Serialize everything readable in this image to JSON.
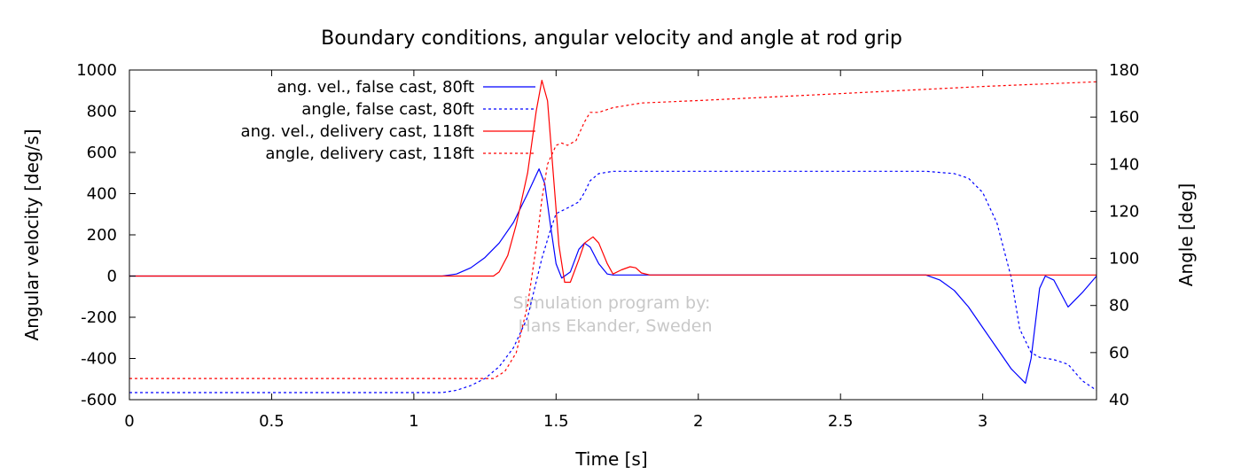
{
  "chart_data": {
    "type": "line",
    "title": "Boundary conditions, angular velocity and angle at rod grip",
    "xlabel": "Time [s]",
    "ylabel": "Angular velocity [deg/s]",
    "y2label": "Angle [deg]",
    "xlim": [
      0,
      3.4
    ],
    "ylim": [
      -600,
      1000
    ],
    "y2lim": [
      40,
      180
    ],
    "xticks": [
      "0",
      "0.5",
      "1",
      "1.5",
      "2",
      "2.5",
      "3"
    ],
    "yticks": [
      "1000",
      "800",
      "600",
      "400",
      "200",
      "0",
      "-200",
      "-400",
      "-600"
    ],
    "y2ticks": [
      "180",
      "160",
      "140",
      "120",
      "100",
      "80",
      "60",
      "40"
    ],
    "grid": false,
    "legend_position": "top-left",
    "watermark": [
      "Simulation program by:",
      "Hans Ekander, Sweden"
    ],
    "colors": {
      "false_cast": "#0000ff",
      "delivery_cast": "#ff0000"
    },
    "series": [
      {
        "name": "ang. vel., false cast, 80ft",
        "axis": "left",
        "color": "#0000ff",
        "dash": false,
        "x": [
          0,
          1.1,
          1.15,
          1.2,
          1.25,
          1.3,
          1.35,
          1.4,
          1.44,
          1.46,
          1.48,
          1.5,
          1.52,
          1.55,
          1.58,
          1.6,
          1.62,
          1.65,
          1.68,
          1.7,
          1.75,
          1.8,
          2.8,
          2.85,
          2.9,
          2.95,
          3.0,
          3.05,
          3.1,
          3.15,
          3.17,
          3.2,
          3.22,
          3.25,
          3.3,
          3.35,
          3.4
        ],
        "y": [
          0,
          0,
          10,
          40,
          90,
          160,
          260,
          400,
          520,
          450,
          250,
          60,
          -10,
          20,
          130,
          160,
          140,
          60,
          10,
          5,
          5,
          5,
          5,
          -20,
          -70,
          -150,
          -250,
          -350,
          -450,
          -520,
          -400,
          -60,
          0,
          -20,
          -150,
          -80,
          0
        ]
      },
      {
        "name": "angle, false cast, 80ft",
        "axis": "right",
        "color": "#0000ff",
        "dash": true,
        "x": [
          0,
          1.1,
          1.15,
          1.2,
          1.25,
          1.3,
          1.35,
          1.4,
          1.45,
          1.48,
          1.5,
          1.55,
          1.58,
          1.6,
          1.62,
          1.65,
          1.7,
          2.8,
          2.9,
          2.95,
          3.0,
          3.05,
          3.1,
          3.13,
          3.17,
          3.2,
          3.25,
          3.3,
          3.35,
          3.4
        ],
        "y": [
          43,
          43,
          44,
          46,
          49,
          54,
          62,
          75,
          100,
          112,
          119,
          122,
          124,
          128,
          133,
          136,
          137,
          137,
          136,
          134,
          128,
          115,
          92,
          70,
          60,
          58,
          57,
          55,
          48,
          44
        ]
      },
      {
        "name": "ang. vel., delivery cast, 118ft",
        "axis": "left",
        "color": "#ff0000",
        "dash": false,
        "x": [
          0,
          1.28,
          1.3,
          1.33,
          1.36,
          1.4,
          1.43,
          1.45,
          1.47,
          1.49,
          1.51,
          1.53,
          1.55,
          1.58,
          1.6,
          1.63,
          1.65,
          1.68,
          1.7,
          1.73,
          1.76,
          1.78,
          1.8,
          1.83,
          3.4
        ],
        "y": [
          0,
          0,
          20,
          100,
          250,
          500,
          800,
          950,
          850,
          500,
          150,
          -30,
          -30,
          80,
          160,
          190,
          160,
          60,
          10,
          30,
          45,
          40,
          15,
          5,
          5
        ]
      },
      {
        "name": "angle, delivery cast, 118ft",
        "axis": "right",
        "color": "#ff0000",
        "dash": true,
        "x": [
          0,
          1.28,
          1.32,
          1.36,
          1.4,
          1.43,
          1.45,
          1.47,
          1.5,
          1.52,
          1.54,
          1.57,
          1.6,
          1.62,
          1.65,
          1.7,
          1.75,
          1.8,
          2.0,
          2.5,
          3.0,
          3.4
        ],
        "y": [
          49,
          49,
          52,
          60,
          80,
          105,
          125,
          140,
          148,
          149,
          148,
          150,
          158,
          162,
          162,
          164,
          165,
          166,
          167,
          170,
          173,
          175
        ]
      }
    ]
  }
}
